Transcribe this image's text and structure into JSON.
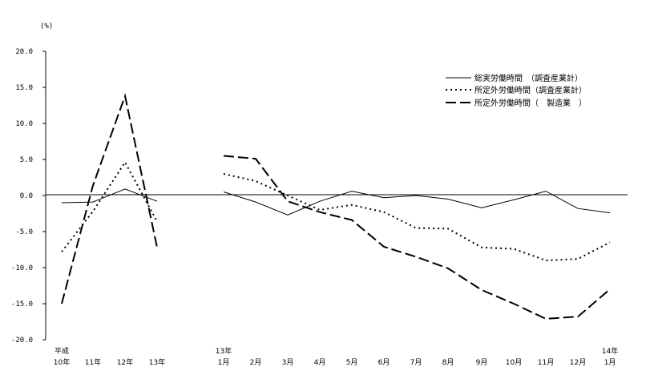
{
  "chart_data": {
    "type": "line",
    "ylabel": "(%)",
    "ylim": [
      -20,
      20
    ],
    "yticks": [
      "20.0",
      "15.0",
      "10.0",
      "5.0",
      "0.0",
      "-5.0",
      "-10.0",
      "-15.0",
      "-20.0"
    ],
    "grid": false,
    "legend_position": "top-right",
    "x_groups": [
      {
        "name": "annual",
        "categories": [
          {
            "top": "平成",
            "bottom": "10年"
          },
          {
            "top": "",
            "bottom": "11年"
          },
          {
            "top": "",
            "bottom": "12年"
          },
          {
            "top": "",
            "bottom": "13年"
          }
        ]
      },
      {
        "name": "monthly",
        "categories": [
          {
            "top": "13年",
            "bottom": "1月"
          },
          {
            "top": "",
            "bottom": "2月"
          },
          {
            "top": "",
            "bottom": "3月"
          },
          {
            "top": "",
            "bottom": "4月"
          },
          {
            "top": "",
            "bottom": "5月"
          },
          {
            "top": "",
            "bottom": "6月"
          },
          {
            "top": "",
            "bottom": "7月"
          },
          {
            "top": "",
            "bottom": "8月"
          },
          {
            "top": "",
            "bottom": "9月"
          },
          {
            "top": "",
            "bottom": "10月"
          },
          {
            "top": "",
            "bottom": "11月"
          },
          {
            "top": "",
            "bottom": "12月"
          },
          {
            "top": "14年",
            "bottom": "1月"
          }
        ]
      }
    ],
    "series": [
      {
        "name": "総実労働時間　（調査産業計）",
        "style": "solid",
        "annual": [
          -1.0,
          -0.9,
          0.9,
          -0.8
        ],
        "monthly": [
          0.5,
          -0.9,
          -2.7,
          -0.8,
          0.6,
          -0.3,
          0.0,
          -0.5,
          -1.7,
          -0.6,
          0.6,
          -1.8,
          -2.4
        ]
      },
      {
        "name": "所定外労働時間（調査産業計）",
        "style": "dotted",
        "annual": [
          -7.8,
          -2.2,
          4.6,
          -3.6
        ],
        "monthly": [
          3.0,
          2.0,
          0.0,
          -2.0,
          -1.3,
          -2.3,
          -4.5,
          -4.6,
          -7.2,
          -7.4,
          -9.0,
          -8.8,
          -6.5
        ]
      },
      {
        "name": "所定外労働時間（　製造業　）",
        "style": "dashed",
        "annual": [
          -15.0,
          1.4,
          13.8,
          -7.2
        ],
        "monthly": [
          5.5,
          5.1,
          -0.8,
          -2.3,
          -3.4,
          -7.1,
          -8.5,
          -10.1,
          -13.1,
          -15.0,
          -17.1,
          -16.8,
          -13.0
        ]
      }
    ]
  }
}
